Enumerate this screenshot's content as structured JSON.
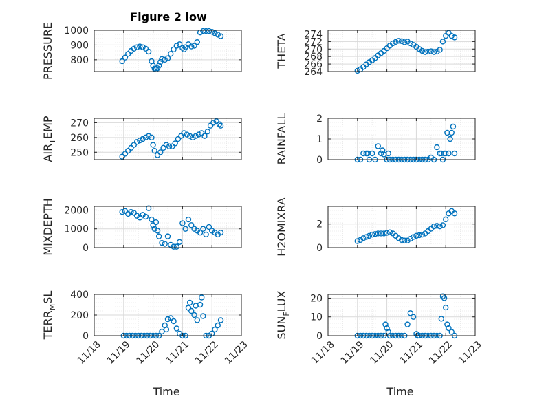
{
  "figure": {
    "title": "Figure 2 low",
    "marker_color": "#0072BD"
  },
  "chart_data": [
    {
      "type": "scatter",
      "panel": "pressure",
      "ylabel": "PRESSURE",
      "ylabel_sub": "",
      "xlim": [
        0,
        5
      ],
      "ylim": [
        720,
        1000
      ],
      "yticks": [
        800,
        900,
        1000
      ],
      "xticks": [],
      "xtick_labels": [],
      "xlabel": "",
      "grid": true,
      "x": [
        0.95,
        1.05,
        1.15,
        1.25,
        1.35,
        1.45,
        1.55,
        1.65,
        1.75,
        1.85,
        1.95,
        2.0,
        2.05,
        2.1,
        2.15,
        2.2,
        2.25,
        2.3,
        2.4,
        2.5,
        2.6,
        2.7,
        2.8,
        2.9,
        3.0,
        3.05,
        3.1,
        3.2,
        3.3,
        3.4,
        3.5,
        3.6,
        3.7,
        3.8,
        3.9,
        4.0,
        4.1,
        4.2,
        4.3
      ],
      "y": [
        790,
        815,
        840,
        860,
        875,
        885,
        890,
        885,
        875,
        855,
        790,
        760,
        740,
        735,
        742,
        760,
        785,
        805,
        800,
        810,
        840,
        870,
        895,
        905,
        880,
        870,
        885,
        905,
        890,
        895,
        920,
        985,
        995,
        995,
        995,
        990,
        980,
        970,
        960
      ]
    },
    {
      "type": "scatter",
      "panel": "theta",
      "ylabel": "THETA",
      "ylabel_sub": "",
      "xlim": [
        0,
        5
      ],
      "ylim": [
        264,
        275
      ],
      "yticks": [
        264,
        266,
        268,
        270,
        272,
        274
      ],
      "xticks": [],
      "xtick_labels": [],
      "xlabel": "",
      "grid": true,
      "x": [
        1.0,
        1.1,
        1.2,
        1.3,
        1.4,
        1.5,
        1.6,
        1.7,
        1.8,
        1.9,
        2.0,
        2.1,
        2.2,
        2.3,
        2.4,
        2.5,
        2.6,
        2.7,
        2.8,
        2.9,
        3.0,
        3.1,
        3.2,
        3.3,
        3.4,
        3.5,
        3.6,
        3.7,
        3.8,
        3.9,
        4.0,
        4.1,
        4.2,
        4.3
      ],
      "y": [
        264.2,
        264.6,
        265.2,
        265.9,
        266.5,
        267.0,
        267.6,
        268.3,
        268.9,
        269.5,
        270.2,
        270.9,
        271.5,
        271.9,
        272.2,
        272.1,
        271.8,
        272.0,
        271.5,
        271.1,
        270.6,
        270.0,
        269.5,
        269.2,
        269.3,
        269.4,
        269.2,
        269.3,
        269.8,
        272.0,
        273.5,
        274.3,
        273.5,
        273.1
      ]
    },
    {
      "type": "scatter",
      "panel": "air_temp",
      "ylabel": "AIR",
      "ylabel_sub": "T",
      "ylabel_suffix": "EMP",
      "xlim": [
        0,
        5
      ],
      "ylim": [
        245,
        273
      ],
      "yticks": [
        250,
        260,
        270
      ],
      "xticks": [],
      "xtick_labels": [],
      "xlabel": "",
      "grid": true,
      "x": [
        0.95,
        1.05,
        1.15,
        1.25,
        1.35,
        1.45,
        1.55,
        1.65,
        1.75,
        1.85,
        1.95,
        2.0,
        2.05,
        2.15,
        2.25,
        2.35,
        2.45,
        2.55,
        2.65,
        2.75,
        2.85,
        2.95,
        3.05,
        3.15,
        3.25,
        3.35,
        3.45,
        3.55,
        3.65,
        3.75,
        3.85,
        3.95,
        4.05,
        4.15,
        4.25,
        4.3
      ],
      "y": [
        247,
        249,
        251,
        253,
        255,
        257,
        258,
        259,
        260,
        261,
        260,
        255,
        251,
        248,
        250,
        253,
        255,
        254,
        254,
        256,
        259,
        261,
        263,
        262,
        261,
        260,
        261,
        262,
        263,
        261,
        264,
        268,
        270,
        271,
        269,
        268
      ]
    },
    {
      "type": "scatter",
      "panel": "rainfall",
      "ylabel": "RAINFALL",
      "ylabel_sub": "",
      "xlim": [
        0,
        5
      ],
      "ylim": [
        0,
        2
      ],
      "yticks": [
        0,
        1,
        2
      ],
      "xticks": [],
      "xtick_labels": [],
      "xlabel": "",
      "grid": true,
      "x": [
        1.0,
        1.1,
        1.2,
        1.3,
        1.35,
        1.4,
        1.5,
        1.6,
        1.7,
        1.8,
        1.85,
        1.9,
        2.0,
        2.05,
        2.1,
        2.2,
        2.3,
        2.4,
        2.5,
        2.6,
        2.7,
        2.8,
        2.9,
        3.0,
        3.1,
        3.2,
        3.3,
        3.4,
        3.5,
        3.6,
        3.7,
        3.8,
        3.85,
        3.9,
        3.95,
        4.0,
        4.05,
        4.1,
        4.15,
        4.2,
        4.25,
        4.3
      ],
      "y": [
        0,
        0,
        0.3,
        0.3,
        0.3,
        0,
        0.3,
        0,
        0.65,
        0.3,
        0.45,
        0.25,
        0,
        0.3,
        0,
        0,
        0,
        0,
        0,
        0,
        0,
        0,
        0,
        0,
        0,
        0,
        0,
        0,
        0.1,
        0,
        0.6,
        0.3,
        0.3,
        0,
        0.3,
        0.3,
        1.3,
        0.3,
        1.0,
        1.3,
        1.6,
        0.3
      ]
    },
    {
      "type": "scatter",
      "panel": "mixdepth",
      "ylabel": "MIXDEPTH",
      "ylabel_sub": "",
      "xlim": [
        0,
        5
      ],
      "ylim": [
        0,
        2200
      ],
      "yticks": [
        0,
        1000,
        2000
      ],
      "xticks": [],
      "xtick_labels": [],
      "xlabel": "",
      "grid": true,
      "x": [
        0.95,
        1.05,
        1.15,
        1.25,
        1.35,
        1.45,
        1.55,
        1.65,
        1.75,
        1.85,
        1.95,
        2.0,
        2.05,
        2.1,
        2.15,
        2.2,
        2.3,
        2.4,
        2.5,
        2.6,
        2.7,
        2.8,
        2.9,
        3.0,
        3.1,
        3.2,
        3.3,
        3.4,
        3.5,
        3.6,
        3.7,
        3.8,
        3.9,
        4.0,
        4.1,
        4.2,
        4.3
      ],
      "y": [
        1900,
        1950,
        1800,
        1900,
        1850,
        1700,
        1600,
        1750,
        1650,
        2100,
        1500,
        1200,
        1000,
        1350,
        900,
        600,
        250,
        200,
        600,
        150,
        50,
        50,
        300,
        1300,
        1000,
        1500,
        1200,
        1000,
        900,
        800,
        1000,
        700,
        1100,
        900,
        800,
        700,
        800
      ]
    },
    {
      "type": "scatter",
      "panel": "h2omixra",
      "ylabel": "H2OMIXRA",
      "ylabel_sub": "",
      "xlim": [
        0,
        5
      ],
      "ylim": [
        0,
        3.5
      ],
      "yticks": [
        0,
        2
      ],
      "xticks": [],
      "xtick_labels": [],
      "xlabel": "",
      "grid": true,
      "x": [
        1.0,
        1.1,
        1.2,
        1.3,
        1.4,
        1.5,
        1.6,
        1.7,
        1.8,
        1.9,
        2.0,
        2.1,
        2.2,
        2.3,
        2.4,
        2.5,
        2.6,
        2.7,
        2.8,
        2.9,
        3.0,
        3.1,
        3.2,
        3.3,
        3.4,
        3.5,
        3.6,
        3.7,
        3.8,
        3.9,
        4.0,
        4.1,
        4.2,
        4.3
      ],
      "y": [
        0.55,
        0.65,
        0.8,
        0.9,
        1.0,
        1.1,
        1.15,
        1.2,
        1.2,
        1.2,
        1.25,
        1.3,
        1.2,
        1.0,
        0.8,
        0.65,
        0.6,
        0.6,
        0.75,
        0.9,
        1.0,
        1.05,
        1.1,
        1.2,
        1.4,
        1.6,
        1.8,
        1.85,
        1.8,
        1.9,
        2.4,
        2.9,
        3.1,
        2.9
      ]
    },
    {
      "type": "scatter",
      "panel": "terr_msl",
      "ylabel": "TERR",
      "ylabel_sub": "M",
      "ylabel_suffix": "SL",
      "xlim": [
        0,
        5
      ],
      "ylim": [
        0,
        400
      ],
      "yticks": [
        0,
        200,
        400
      ],
      "xticks": [
        0,
        1,
        2,
        3,
        4,
        5
      ],
      "xtick_labels": [
        "11/18",
        "11/19",
        "11/20",
        "11/21",
        "11/22",
        "11/23"
      ],
      "xlabel": "Time",
      "grid": true,
      "x": [
        1.0,
        1.1,
        1.2,
        1.3,
        1.4,
        1.5,
        1.6,
        1.7,
        1.8,
        1.9,
        2.0,
        2.1,
        2.2,
        2.3,
        2.4,
        2.45,
        2.5,
        2.6,
        2.7,
        2.8,
        2.9,
        3.0,
        3.1,
        3.2,
        3.25,
        3.3,
        3.4,
        3.45,
        3.5,
        3.6,
        3.65,
        3.7,
        3.8,
        3.9,
        4.0,
        4.1,
        4.2,
        4.3
      ],
      "y": [
        0,
        0,
        0,
        0,
        0,
        0,
        0,
        0,
        0,
        0,
        0,
        0,
        0,
        40,
        100,
        60,
        160,
        170,
        140,
        70,
        20,
        0,
        0,
        270,
        320,
        240,
        200,
        290,
        150,
        300,
        370,
        190,
        0,
        0,
        20,
        60,
        100,
        150
      ]
    },
    {
      "type": "scatter",
      "panel": "sun_flux",
      "ylabel": "SUN",
      "ylabel_sub": "F",
      "ylabel_suffix": "LUX",
      "xlim": [
        0,
        5
      ],
      "ylim": [
        0,
        22
      ],
      "yticks": [
        0,
        10,
        20
      ],
      "xticks": [
        0,
        1,
        2,
        3,
        4,
        5
      ],
      "xtick_labels": [
        "11/18",
        "11/19",
        "11/20",
        "11/21",
        "11/22",
        "11/23"
      ],
      "xlabel": "Time",
      "grid": true,
      "x": [
        1.0,
        1.1,
        1.2,
        1.3,
        1.4,
        1.5,
        1.6,
        1.7,
        1.8,
        1.9,
        1.95,
        2.0,
        2.05,
        2.1,
        2.2,
        2.3,
        2.4,
        2.5,
        2.6,
        2.7,
        2.8,
        2.9,
        3.0,
        3.05,
        3.1,
        3.2,
        3.3,
        3.4,
        3.5,
        3.6,
        3.7,
        3.8,
        3.85,
        3.9,
        3.95,
        4.0,
        4.05,
        4.1,
        4.2,
        4.3
      ],
      "y": [
        0,
        0,
        0,
        0,
        0,
        0,
        0,
        0,
        0,
        0,
        6,
        4,
        2,
        0,
        0,
        0,
        0,
        0,
        0,
        6,
        12,
        10,
        1,
        0,
        0,
        0,
        0,
        0,
        0,
        0,
        0,
        0,
        9,
        21,
        20,
        15,
        6,
        4,
        2,
        0
      ]
    }
  ]
}
